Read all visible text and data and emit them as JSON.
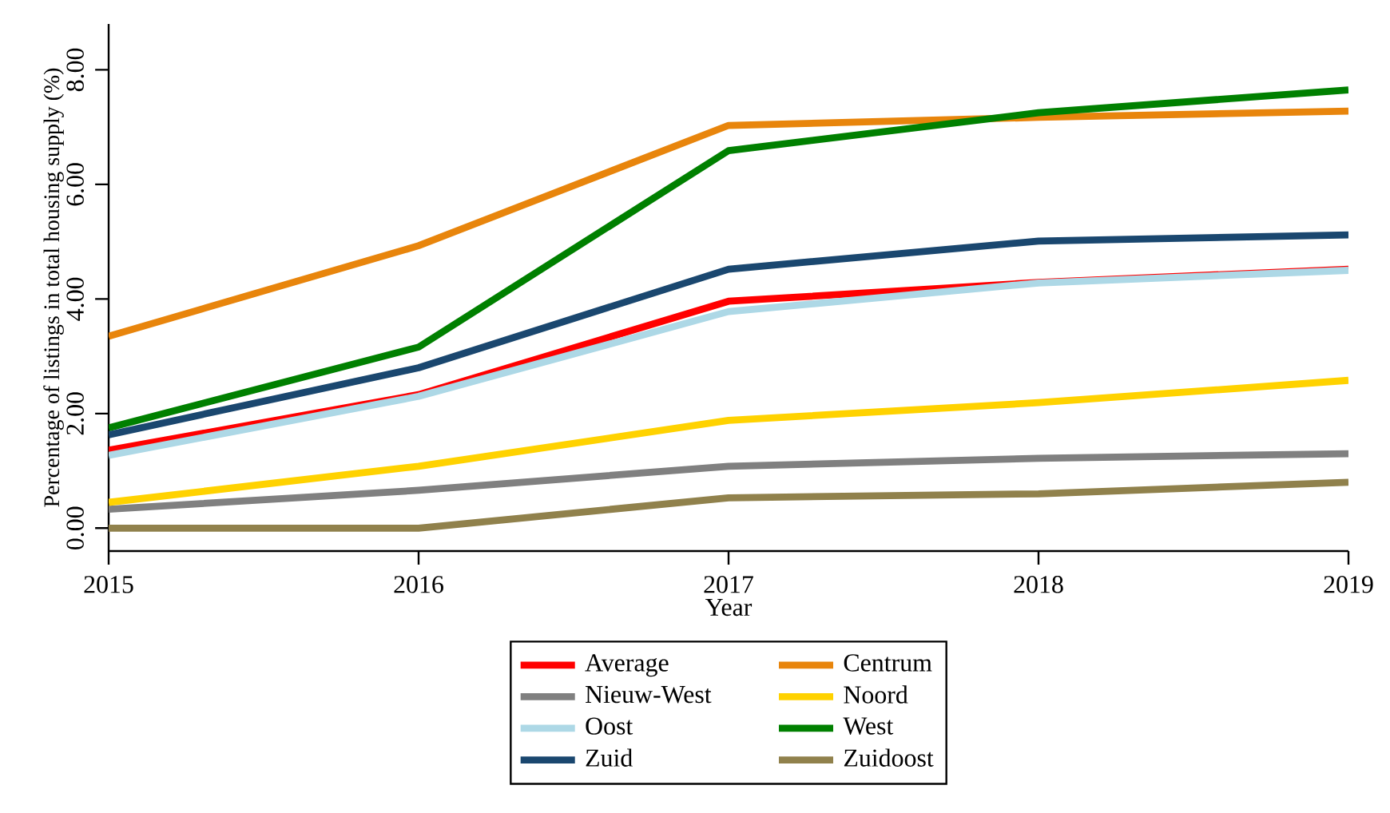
{
  "chart_data": {
    "type": "line",
    "xlabel": "Year",
    "ylabel": "Percentage of listings in total housing supply (%)",
    "x": [
      2015,
      2016,
      2017,
      2018,
      2019
    ],
    "xlim": [
      2015,
      2019
    ],
    "xticks": [
      2015,
      2016,
      2017,
      2018,
      2019
    ],
    "ylim": [
      -0.4,
      8.8
    ],
    "yticks": [
      {
        "value": 0,
        "label": "0.00"
      },
      {
        "value": 2,
        "label": "2.00"
      },
      {
        "value": 4,
        "label": "4.00"
      },
      {
        "value": 6,
        "label": "6.00"
      },
      {
        "value": 8,
        "label": "8.00"
      }
    ],
    "grid": false,
    "legend": "bottom",
    "marker": "none",
    "line_style": "solid",
    "series": [
      {
        "name": "Average",
        "color": "#ff0000",
        "values": [
          1.36,
          2.33,
          3.96,
          4.29,
          4.52
        ]
      },
      {
        "name": "Centrum",
        "color": "#e8850c",
        "values": [
          3.35,
          4.93,
          7.03,
          7.17,
          7.28
        ]
      },
      {
        "name": "Nieuw-West",
        "color": "#808080",
        "values": [
          0.33,
          0.66,
          1.08,
          1.22,
          1.3
        ]
      },
      {
        "name": "Noord",
        "color": "#ffd200",
        "values": [
          0.45,
          1.08,
          1.88,
          2.19,
          2.58
        ]
      },
      {
        "name": "Oost",
        "color": "#add8e6",
        "values": [
          1.27,
          2.3,
          3.78,
          4.28,
          4.5
        ]
      },
      {
        "name": "West",
        "color": "#008000",
        "values": [
          1.75,
          3.16,
          6.59,
          7.25,
          7.65
        ]
      },
      {
        "name": "Zuid",
        "color": "#1a476f",
        "values": [
          1.63,
          2.8,
          4.52,
          5.01,
          5.12
        ]
      },
      {
        "name": "Zuidoost",
        "color": "#90814c",
        "values": [
          0,
          0,
          0.53,
          0.6,
          0.8
        ]
      }
    ]
  }
}
